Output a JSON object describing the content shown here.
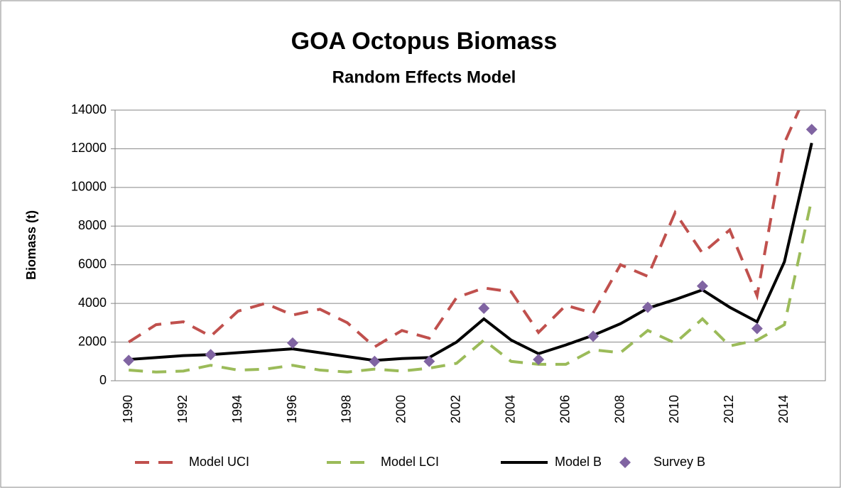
{
  "chart_data": {
    "type": "line",
    "title": "GOA Octopus Biomass",
    "subtitle": "Random Effects Model",
    "y_label": "Biomass (t)",
    "categories": [
      "1990",
      null,
      "1992",
      null,
      "1994",
      null,
      "1996",
      null,
      "1998",
      null,
      "2000",
      null,
      "2002",
      null,
      "2004",
      null,
      "2006",
      null,
      "2008",
      null,
      "2010",
      null,
      "2012",
      null,
      "2014",
      null
    ],
    "series": [
      {
        "name": "Model UCI",
        "color": "#c0504d",
        "style": "dashed",
        "values": [
          2000,
          2900,
          3050,
          2300,
          3600,
          4000,
          3400,
          3700,
          3000,
          1750,
          2600,
          2200,
          4300,
          4800,
          4600,
          2500,
          3900,
          3500,
          6000,
          5400,
          8700,
          6600,
          7800,
          4400,
          12300,
          15500
        ]
      },
      {
        "name": "Model LCI",
        "color": "#9bbb59",
        "style": "dashed",
        "values": [
          550,
          450,
          500,
          800,
          550,
          600,
          800,
          550,
          450,
          600,
          500,
          650,
          900,
          2100,
          1000,
          850,
          850,
          1600,
          1450,
          2600,
          1950,
          3200,
          1800,
          2100,
          2900,
          9400
        ]
      },
      {
        "name": "Model B",
        "color": "#000000",
        "style": "solid",
        "values": [
          1100,
          1200,
          1300,
          1350,
          1450,
          1550,
          1650,
          1450,
          1250,
          1050,
          1150,
          1200,
          2000,
          3200,
          2100,
          1400,
          1850,
          2350,
          2950,
          3750,
          4200,
          4700,
          3800,
          3050,
          6150,
          12300
        ]
      },
      {
        "name": "Survey B",
        "color": "#8064a2",
        "style": "marker",
        "values": [
          1050,
          null,
          null,
          1350,
          null,
          null,
          1950,
          null,
          null,
          1000,
          null,
          1000,
          null,
          3750,
          null,
          1100,
          null,
          2300,
          null,
          3800,
          null,
          4900,
          null,
          2700,
          null,
          13000
        ]
      }
    ],
    "ylim": [
      0,
      14000
    ],
    "yticks": [
      0,
      2000,
      4000,
      6000,
      8000,
      10000,
      12000,
      14000
    ],
    "grid": true
  }
}
